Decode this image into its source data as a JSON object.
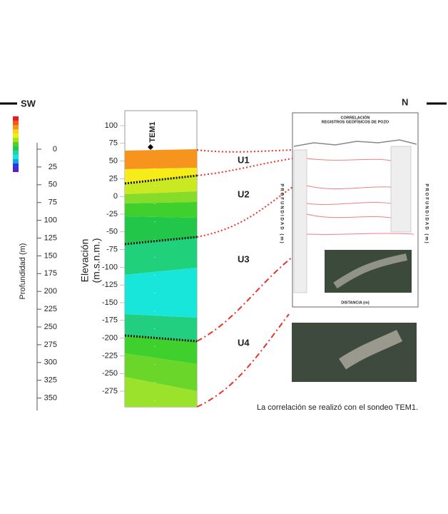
{
  "header": {
    "left": "SW",
    "right": "N"
  },
  "depth_axis": {
    "title": "Profundidad (m)",
    "ticks": [
      0,
      25,
      50,
      75,
      100,
      125,
      150,
      175,
      200,
      225,
      250,
      275,
      300,
      325,
      350
    ]
  },
  "elevation_axis": {
    "title_line1": "Elevación",
    "title_line2": "(m.s.n.m.)",
    "ticks": [
      100,
      75,
      50,
      25,
      0,
      -25,
      -50,
      -75,
      -100,
      -125,
      -150,
      -175,
      -200,
      -225,
      -250,
      -275
    ]
  },
  "sounding": "TEM1",
  "units": [
    "U1",
    "U2",
    "U3",
    "U4"
  ],
  "inset": {
    "title_line1": "CORRELACIÓN",
    "title_line2": "REGISTROS GEOFÍSICOS DE POZO",
    "left_axis": "PROFUNDIDAD (m)",
    "right_axis": "PROFUNDIDAD (m)",
    "x_axis": "DISTANCIA (m)"
  },
  "caption": "La correlación se realizó con el sondeo TEM1."
}
